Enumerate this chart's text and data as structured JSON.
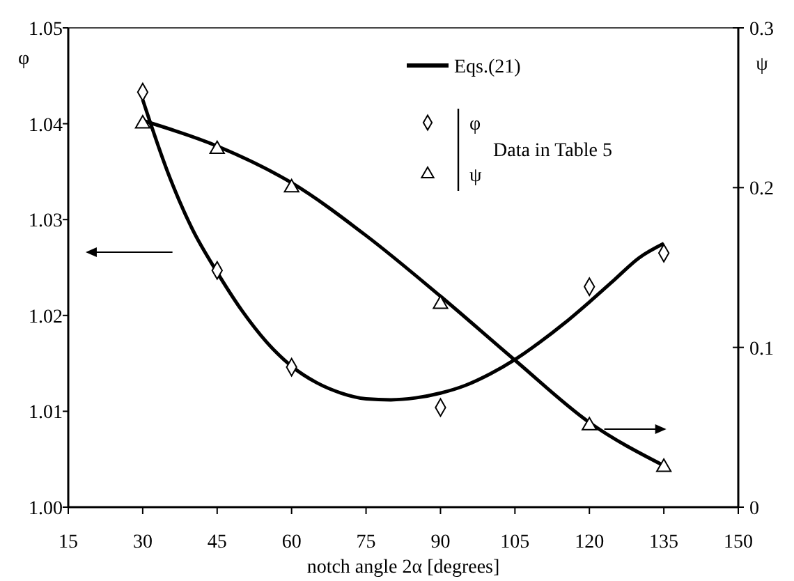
{
  "chart_data": {
    "type": "line",
    "xlabel": "notch angle 2α [degrees]",
    "ylabel": "φ",
    "y2label": "ψ",
    "xlim": [
      15,
      150
    ],
    "xticks": [
      15,
      30,
      45,
      60,
      75,
      90,
      105,
      120,
      135,
      150
    ],
    "ylim": [
      1.0,
      1.05
    ],
    "yticks": [
      {
        "value": 1.0,
        "label": "1.00"
      },
      {
        "value": 1.01,
        "label": "1.01"
      },
      {
        "value": 1.02,
        "label": "1.02"
      },
      {
        "value": 1.03,
        "label": "1.03"
      },
      {
        "value": 1.04,
        "label": "1.04"
      },
      {
        "value": 1.05,
        "label": "1.05"
      }
    ],
    "y2lim": [
      0,
      0.3
    ],
    "y2ticks": [
      0,
      0.1,
      0.2,
      0.3
    ],
    "legend": "top right",
    "grid": false,
    "annotations": [
      "Data in Table 5"
    ],
    "series": [
      {
        "name": "Eqs.(21)",
        "color": "#000000",
        "marker": "none",
        "x": [
          30,
          35,
          40,
          45,
          50,
          55,
          60,
          65,
          70,
          75,
          80,
          85,
          90,
          95,
          100,
          105,
          110,
          115,
          120,
          125,
          130,
          135
        ],
        "values": [
          1.0425,
          1.035,
          1.029,
          1.0245,
          1.0205,
          1.0172,
          1.0147,
          1.013,
          1.0119,
          1.0113,
          1.0112,
          1.0114,
          1.0119,
          1.0127,
          1.0139,
          1.0154,
          1.0172,
          1.0192,
          1.0214,
          1.0237,
          1.026,
          1.0275
        ]
      },
      {
        "axis": "y2",
        "color": "#000000",
        "marker": "none",
        "x": [
          30,
          45,
          60,
          75,
          90,
          105,
          120,
          135
        ],
        "values": [
          0.242,
          0.226,
          0.203,
          0.17,
          0.132,
          0.092,
          0.053,
          0.026
        ]
      },
      {
        "name": "φ",
        "type": "scatter",
        "color": "#000000",
        "marker": "diamond",
        "x": [
          30,
          45,
          60,
          90,
          120,
          135
        ],
        "values": [
          1.0433,
          1.0247,
          1.0146,
          1.0104,
          1.023,
          1.0265
        ]
      },
      {
        "name": "ψ",
        "type": "scatter",
        "axis": "y2",
        "color": "#000000",
        "marker": "triangle",
        "x": [
          30,
          45,
          60,
          90,
          120,
          135
        ],
        "values": [
          0.24,
          0.224,
          0.2,
          0.127,
          0.051,
          0.025
        ]
      }
    ]
  }
}
